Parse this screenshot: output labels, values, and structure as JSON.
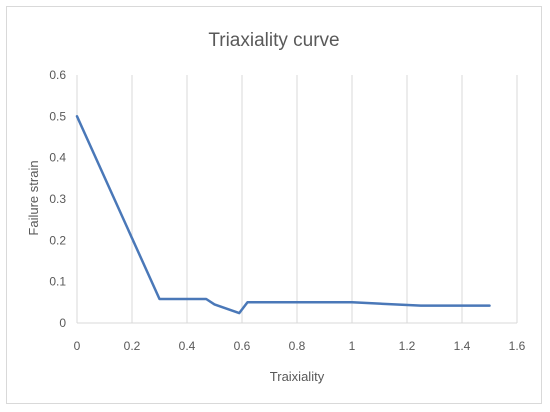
{
  "chart_data": {
    "type": "line",
    "title": "Triaxiality curve",
    "xlabel": "Traixiality",
    "ylabel": "Failure strain",
    "xlim": [
      0,
      1.6
    ],
    "ylim": [
      0,
      0.6
    ],
    "x_ticks": [
      "0",
      "0.2",
      "0.4",
      "0.6",
      "0.8",
      "1",
      "1.2",
      "1.4",
      "1.6"
    ],
    "y_ticks": [
      "0",
      "0.1",
      "0.2",
      "0.3",
      "0.4",
      "0.5",
      "0.6"
    ],
    "grid": "vertical",
    "legend": "none",
    "series": [
      {
        "color": "#4a78b8",
        "points": [
          [
            0,
            0.5
          ],
          [
            0.3,
            0.058
          ],
          [
            0.47,
            0.058
          ],
          [
            0.5,
            0.045
          ],
          [
            0.59,
            0.024
          ],
          [
            0.62,
            0.05
          ],
          [
            1.0,
            0.05
          ],
          [
            1.25,
            0.042
          ],
          [
            1.5,
            0.042
          ]
        ]
      }
    ]
  }
}
